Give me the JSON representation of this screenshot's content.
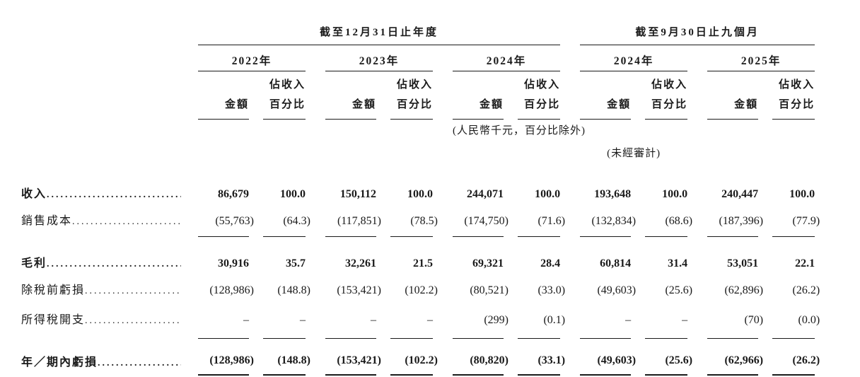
{
  "table": {
    "col_groups": [
      {
        "spanner": "截至12月31日止年度",
        "years": [
          "2022年",
          "2023年",
          "2024年"
        ]
      },
      {
        "spanner": "截至9月30日止九個月",
        "years": [
          "2024年",
          "2025年"
        ]
      }
    ],
    "amount_header": "金額",
    "pct_header_line1": "佔收入",
    "pct_header_line2": "百分比",
    "note_units": "(人民幣千元，百分比除外)",
    "note_unaudited": "(未經審計)",
    "rows": [
      {
        "label": "收入",
        "bold": true,
        "underline": "none",
        "values": [
          "86,679",
          "100.0",
          "150,112",
          "100.0",
          "244,071",
          "100.0",
          "193,648",
          "100.0",
          "240,447",
          "100.0"
        ]
      },
      {
        "label": "銷售成本",
        "bold": false,
        "underline": "single",
        "values": [
          "(55,763)",
          "(64.3)",
          "(117,851)",
          "(78.5)",
          "(174,750)",
          "(71.6)",
          "(132,834)",
          "(68.6)",
          "(187,396)",
          "(77.9)"
        ]
      },
      {
        "label": "毛利",
        "bold": true,
        "underline": "none",
        "values": [
          "30,916",
          "35.7",
          "32,261",
          "21.5",
          "69,321",
          "28.4",
          "60,814",
          "31.4",
          "53,051",
          "22.1"
        ]
      },
      {
        "label": "除稅前虧損",
        "bold": false,
        "underline": "none",
        "values": [
          "(128,986)",
          "(148.8)",
          "(153,421)",
          "(102.2)",
          "(80,521)",
          "(33.0)",
          "(49,603)",
          "(25.6)",
          "(62,896)",
          "(26.2)"
        ]
      },
      {
        "label": "所得稅開支",
        "bold": false,
        "underline": "single",
        "values": [
          "–",
          "–",
          "–",
          "–",
          "(299)",
          "(0.1)",
          "–",
          "–",
          "(70)",
          "(0.0)"
        ]
      },
      {
        "label": "年／期內虧損",
        "bold": true,
        "underline": "double",
        "values": [
          "(128,986)",
          "(148.8)",
          "(153,421)",
          "(102.2)",
          "(80,820)",
          "(33.1)",
          "(49,603)",
          "(25.6)",
          "(62,966)",
          "(26.2)"
        ]
      }
    ]
  }
}
